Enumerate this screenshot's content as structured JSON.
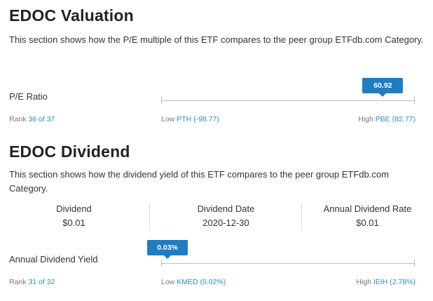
{
  "valuation": {
    "title": "EDOC Valuation",
    "description": "This section shows how the P/E multiple of this ETF compares to the peer group ETFdb.com Category.",
    "metric_label": "P/E Ratio",
    "value_badge": "60.92",
    "rank_prefix": "Rank",
    "rank_value": "36 of 37",
    "low_prefix": "Low",
    "low_value": "PTH (-98.77)",
    "high_prefix": "High",
    "high_value": "PBE (82.77)",
    "marker_fraction": 0.874
  },
  "dividend": {
    "title": "EDOC Dividend",
    "description": "This section shows how the dividend yield of this ETF compares to the peer group ETFdb.com Category.",
    "stats": [
      {
        "label": "Dividend",
        "value": "$0.01"
      },
      {
        "label": "Dividend Date",
        "value": "2020-12-30"
      },
      {
        "label": "Annual Dividend Rate",
        "value": "$0.01"
      }
    ],
    "metric_label": "Annual Dividend Yield",
    "value_badge": "0.03%",
    "rank_prefix": "Rank",
    "rank_value": "31 of 32",
    "low_prefix": "Low",
    "low_value": "KMED (0.02%)",
    "high_prefix": "High",
    "high_value": "IEIH (2.78%)",
    "marker_fraction": 0.0
  }
}
